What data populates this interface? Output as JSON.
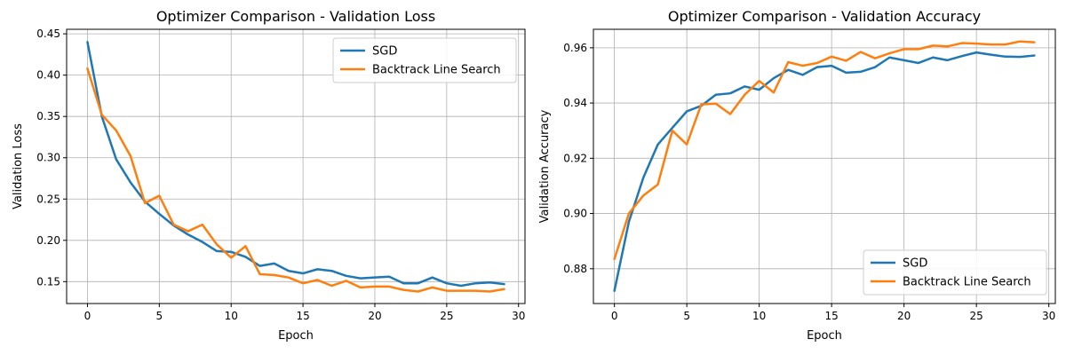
{
  "chart_data": [
    {
      "type": "line",
      "title": "Optimizer Comparison - Validation Loss",
      "xlabel": "Epoch",
      "ylabel": "Validation Loss",
      "xlim": [
        -1.45,
        30.45
      ],
      "ylim": [
        0.1235,
        0.4555
      ],
      "xticks": [
        0,
        5,
        10,
        15,
        20,
        25,
        30
      ],
      "yticks": [
        0.15,
        0.2,
        0.25,
        0.3,
        0.35,
        0.4,
        0.45
      ],
      "ytick_decimals": 2,
      "grid": true,
      "legend": "upper-right",
      "x": [
        0,
        1,
        2,
        3,
        4,
        5,
        6,
        7,
        8,
        9,
        10,
        11,
        12,
        13,
        14,
        15,
        16,
        17,
        18,
        19,
        20,
        21,
        22,
        23,
        24,
        25,
        26,
        27,
        28,
        29
      ],
      "series": [
        {
          "name": "SGD",
          "color": "#1f77b4",
          "values": [
            0.44,
            0.35,
            0.298,
            0.27,
            0.247,
            0.232,
            0.218,
            0.207,
            0.198,
            0.187,
            0.186,
            0.18,
            0.169,
            0.172,
            0.163,
            0.16,
            0.165,
            0.163,
            0.157,
            0.154,
            0.155,
            0.156,
            0.148,
            0.148,
            0.155,
            0.148,
            0.145,
            0.148,
            0.149,
            0.147
          ]
        },
        {
          "name": "Backtrack Line Search",
          "color": "#ff7f0e",
          "values": [
            0.408,
            0.352,
            0.333,
            0.302,
            0.245,
            0.254,
            0.219,
            0.211,
            0.219,
            0.195,
            0.179,
            0.193,
            0.159,
            0.158,
            0.155,
            0.148,
            0.152,
            0.145,
            0.151,
            0.143,
            0.144,
            0.144,
            0.14,
            0.138,
            0.143,
            0.139,
            0.139,
            0.139,
            0.138,
            0.141
          ]
        }
      ]
    },
    {
      "type": "line",
      "title": "Optimizer Comparison - Validation Accuracy",
      "xlabel": "Epoch",
      "ylabel": "Validation Accuracy",
      "xlim": [
        -1.45,
        30.45
      ],
      "ylim": [
        0.8674,
        0.9667
      ],
      "xticks": [
        0,
        5,
        10,
        15,
        20,
        25,
        30
      ],
      "yticks": [
        0.88,
        0.9,
        0.92,
        0.94,
        0.96
      ],
      "ytick_decimals": 2,
      "grid": true,
      "legend": "lower-right",
      "x": [
        0,
        1,
        2,
        3,
        4,
        5,
        6,
        7,
        8,
        9,
        10,
        11,
        12,
        13,
        14,
        15,
        16,
        17,
        18,
        19,
        20,
        21,
        22,
        23,
        24,
        25,
        26,
        27,
        28,
        29
      ],
      "series": [
        {
          "name": "SGD",
          "color": "#1f77b4",
          "values": [
            0.872,
            0.897,
            0.913,
            0.925,
            0.931,
            0.937,
            0.939,
            0.943,
            0.9435,
            0.946,
            0.9448,
            0.949,
            0.952,
            0.9502,
            0.953,
            0.9535,
            0.951,
            0.9513,
            0.953,
            0.9565,
            0.9555,
            0.9545,
            0.9565,
            0.9555,
            0.957,
            0.9583,
            0.9575,
            0.9568,
            0.9567,
            0.9572
          ]
        },
        {
          "name": "Backtrack Line Search",
          "color": "#ff7f0e",
          "values": [
            0.8835,
            0.9,
            0.9065,
            0.9105,
            0.93,
            0.925,
            0.9395,
            0.9398,
            0.936,
            0.943,
            0.948,
            0.9438,
            0.9548,
            0.9535,
            0.9545,
            0.9568,
            0.9553,
            0.9585,
            0.9562,
            0.958,
            0.9595,
            0.9595,
            0.9608,
            0.9605,
            0.9617,
            0.9615,
            0.9612,
            0.9612,
            0.9623,
            0.962
          ]
        }
      ]
    }
  ]
}
